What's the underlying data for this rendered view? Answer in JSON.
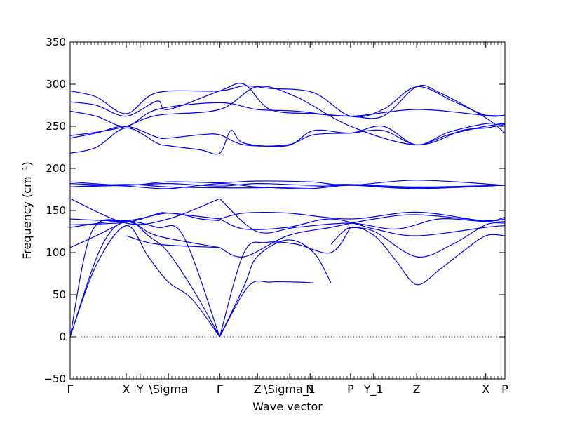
{
  "chart_data": {
    "type": "line",
    "title": "",
    "xlabel": "Wave vector",
    "ylabel": "Frequency (cm⁻¹)",
    "ylim": [
      -50,
      350
    ],
    "xlim": [
      0,
      1
    ],
    "grid": false,
    "y_ticks": [
      -50,
      0,
      50,
      100,
      150,
      200,
      250,
      300,
      350
    ],
    "x_ticks": [
      {
        "label": "Γ",
        "pos": 0.0
      },
      {
        "label": "X",
        "pos": 0.129
      },
      {
        "label": "Y",
        "pos": 0.161
      },
      {
        "label": "\\Sigma",
        "pos": 0.226
      },
      {
        "label": "Γ",
        "pos": 0.344
      },
      {
        "label": "Z",
        "pos": 0.431
      },
      {
        "label": "\\Sigma_1",
        "pos": 0.505
      },
      {
        "label": "N",
        "pos": 0.552
      },
      {
        "label": "P",
        "pos": 0.645
      },
      {
        "label": "Y_1",
        "pos": 0.698
      },
      {
        "label": "Z",
        "pos": 0.797
      },
      {
        "label": "X",
        "pos": 0.956
      },
      {
        "label": "P",
        "pos": 1.0
      }
    ],
    "zero_line": {
      "y": 0,
      "style": "dotted",
      "color": "#0000ff"
    },
    "line_color": "#0000ff",
    "series": [
      {
        "x": [
          0,
          0.06,
          0.129,
          0.18,
          0.226,
          0.28,
          0.344
        ],
        "y": [
          0,
          85,
          132,
          95,
          65,
          45,
          0
        ]
      },
      {
        "x": [
          0,
          0.07,
          0.129,
          0.18,
          0.226,
          0.29,
          0.344
        ],
        "y": [
          0,
          105,
          138,
          120,
          100,
          50,
          0
        ]
      },
      {
        "x": [
          0,
          0.05,
          0.129,
          0.2,
          0.26,
          0.344
        ],
        "y": [
          0,
          125,
          137,
          130,
          120,
          0
        ]
      },
      {
        "x": [
          0.344,
          0.41,
          0.46,
          0.52,
          0.56
        ],
        "y": [
          0,
          60,
          65,
          65,
          64
        ]
      },
      {
        "x": [
          0.344,
          0.4,
          0.43,
          0.5,
          0.56,
          0.6
        ],
        "y": [
          0,
          60,
          95,
          115,
          100,
          64
        ]
      },
      {
        "x": [
          0.344,
          0.4,
          0.45,
          0.52,
          0.6,
          0.645
        ],
        "y": [
          0,
          100,
          112,
          110,
          100,
          130
        ]
      },
      {
        "x": [
          0.6,
          0.645,
          0.7,
          0.75,
          0.797,
          0.85,
          0.9,
          0.956,
          1.0
        ],
        "y": [
          110,
          130,
          120,
          90,
          62,
          80,
          100,
          120,
          120
        ]
      },
      {
        "x": [
          0.645,
          0.7,
          0.797,
          0.88,
          0.956,
          1.0
        ],
        "y": [
          130,
          125,
          95,
          110,
          133,
          135
        ]
      },
      {
        "x": [
          0,
          0.06,
          0.129
        ],
        "y": [
          106,
          120,
          138
        ]
      },
      {
        "x": [
          0.129,
          0.2,
          0.344
        ],
        "y": [
          120,
          110,
          106
        ]
      },
      {
        "x": [
          0,
          0.129,
          0.226,
          0.344
        ],
        "y": [
          164,
          135,
          140,
          164
        ]
      },
      {
        "x": [
          0,
          0.129,
          0.226,
          0.3,
          0.344
        ],
        "y": [
          140,
          138,
          147,
          140,
          138
        ]
      },
      {
        "x": [
          0,
          0.129,
          0.2,
          0.226,
          0.344
        ],
        "y": [
          133,
          136,
          146,
          147,
          140
        ]
      },
      {
        "x": [
          0,
          0.129,
          0.2,
          0.344
        ],
        "y": [
          130,
          137,
          120,
          106
        ]
      },
      {
        "x": [
          0.344,
          0.4,
          0.5,
          0.645,
          0.797,
          0.956,
          1.0
        ],
        "y": [
          140,
          147,
          147,
          140,
          148,
          137,
          137
        ]
      },
      {
        "x": [
          0.344,
          0.43,
          0.52,
          0.645,
          0.75,
          0.85,
          0.956,
          1.0
        ],
        "y": [
          164,
          125,
          130,
          135,
          128,
          140,
          137,
          142
        ]
      },
      {
        "x": [
          0.344,
          0.4,
          0.5,
          0.6,
          0.7,
          0.797,
          0.956,
          1.0
        ],
        "y": [
          140,
          128,
          130,
          140,
          128,
          120,
          130,
          132
        ]
      },
      {
        "x": [
          0.344,
          0.4,
          0.5,
          0.6,
          0.7,
          0.797,
          0.956,
          1.0
        ],
        "y": [
          106,
          95,
          120,
          130,
          140,
          145,
          138,
          140
        ]
      },
      {
        "x": [
          0,
          0.129,
          0.226,
          0.344,
          0.43,
          0.552,
          0.645,
          0.797,
          1.0
        ],
        "y": [
          184,
          180,
          184,
          183,
          185,
          184,
          180,
          186,
          180
        ]
      },
      {
        "x": [
          0,
          0.129,
          0.226,
          0.344,
          0.43,
          0.552,
          0.645,
          0.797,
          1.0
        ],
        "y": [
          182,
          179,
          176,
          182,
          178,
          176,
          180,
          177,
          180
        ]
      },
      {
        "x": [
          0,
          0.129,
          0.226,
          0.344,
          0.43,
          0.552,
          0.645,
          0.797,
          1.0
        ],
        "y": [
          178,
          181,
          178,
          177,
          177,
          178,
          180,
          176,
          180
        ]
      },
      {
        "x": [
          0,
          0.129,
          0.226,
          0.344,
          0.43,
          0.552,
          0.645,
          0.797,
          1.0
        ],
        "y": [
          178,
          180,
          182,
          179,
          182,
          180,
          181,
          178,
          180
        ]
      },
      {
        "x": [
          0,
          0.06,
          0.129,
          0.2,
          0.344,
          0.4,
          0.46,
          0.56,
          0.645,
          0.72,
          0.797,
          0.88,
          0.956,
          1.0
        ],
        "y": [
          292,
          285,
          265,
          290,
          292,
          298,
          295,
          290,
          262,
          270,
          297,
          280,
          263,
          263
        ]
      },
      {
        "x": [
          0,
          0.06,
          0.129,
          0.2,
          0.226,
          0.344,
          0.4,
          0.46,
          0.56,
          0.645,
          0.72,
          0.797,
          0.85,
          0.956,
          1.0
        ],
        "y": [
          279,
          275,
          262,
          280,
          270,
          292,
          300,
          270,
          265,
          262,
          262,
          297,
          290,
          260,
          242
        ]
      },
      {
        "x": [
          0,
          0.06,
          0.129,
          0.2,
          0.344,
          0.43,
          0.52,
          0.645,
          0.797,
          0.956,
          1.0
        ],
        "y": [
          268,
          262,
          250,
          270,
          278,
          270,
          268,
          262,
          270,
          263,
          263
        ]
      },
      {
        "x": [
          0,
          0.06,
          0.129,
          0.2,
          0.344,
          0.43,
          0.52,
          0.645,
          0.797,
          0.9,
          0.956,
          1.0
        ],
        "y": [
          239,
          243,
          250,
          263,
          270,
          297,
          285,
          250,
          228,
          245,
          248,
          252
        ]
      },
      {
        "x": [
          0,
          0.06,
          0.129,
          0.2,
          0.226,
          0.3,
          0.344,
          0.4,
          0.5,
          0.56,
          0.645,
          0.72,
          0.797,
          0.87,
          0.956,
          1.0
        ],
        "y": [
          236,
          242,
          250,
          237,
          236,
          240,
          240,
          228,
          228,
          240,
          242,
          245,
          228,
          240,
          250,
          253
        ]
      },
      {
        "x": [
          0,
          0.06,
          0.129,
          0.2,
          0.226,
          0.3,
          0.344,
          0.37,
          0.4,
          0.5,
          0.56,
          0.645,
          0.72,
          0.797,
          0.87,
          0.956,
          1.0
        ],
        "y": [
          218,
          225,
          248,
          230,
          227,
          222,
          218,
          245,
          230,
          227,
          245,
          242,
          250,
          228,
          243,
          253,
          253
        ]
      }
    ]
  }
}
